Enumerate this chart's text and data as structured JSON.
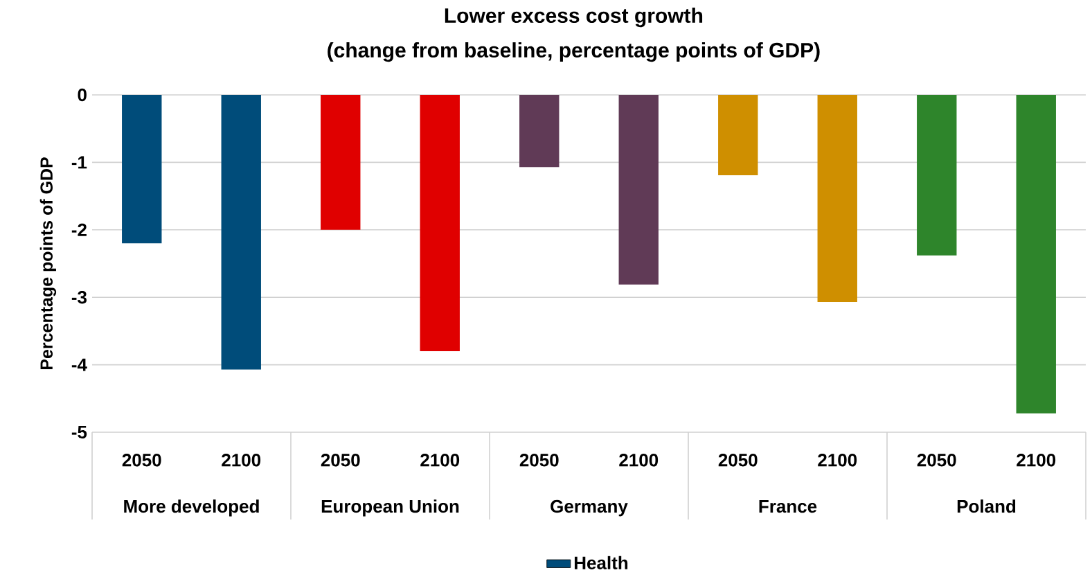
{
  "chart_data": {
    "type": "bar",
    "title": "Lower excess cost growth",
    "subtitle": "(change from baseline, percentage points of GDP)",
    "ylabel": "Percentage points of GDP",
    "categories": [
      "2050",
      "2100",
      "2050",
      "2100",
      "2050",
      "2100",
      "2050",
      "2100",
      "2050",
      "2100"
    ],
    "series": [
      {
        "name": "Health",
        "color": "#004c7a",
        "colors": [
          "#004c7a",
          "#004c7a",
          "#e00000",
          "#e00000",
          "#603a56",
          "#603a56",
          "#cf8f00",
          "#cf8f00",
          "#2e852b",
          "#2e852b"
        ],
        "values": [
          -2.2,
          -4.07,
          -2.0,
          -3.8,
          -1.07,
          -2.81,
          -1.19,
          -3.07,
          -2.38,
          -4.72
        ]
      }
    ],
    "annotations": [
      "More developed",
      "European Union",
      "Germany",
      "France",
      "Poland"
    ],
    "ylim": [
      -5,
      0
    ],
    "yticks": [
      -5,
      -4,
      -3,
      -2,
      -1,
      0
    ],
    "grid": "y",
    "legend": "bottom"
  }
}
